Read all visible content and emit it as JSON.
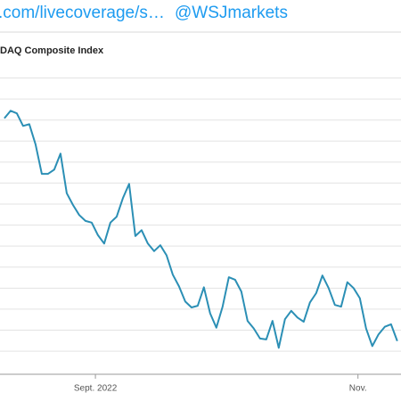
{
  "header": {
    "link": ".com/livecoverage/s…",
    "handle": "@WSJmarkets"
  },
  "chart_data": {
    "type": "line",
    "title": "DAQ Composite Index",
    "color": "#2b8fb5",
    "grid": true,
    "values": [
      13020,
      13110,
      13080,
      12930,
      12950,
      12710,
      12360,
      12360,
      12410,
      12600,
      12130,
      11990,
      11870,
      11800,
      11780,
      11630,
      11530,
      11780,
      11850,
      12070,
      12240,
      11620,
      11690,
      11530,
      11440,
      11510,
      11390,
      11160,
      11020,
      10840,
      10770,
      10790,
      11010,
      10700,
      10530,
      10780,
      11130,
      11100,
      10960,
      10610,
      10520,
      10400,
      10390,
      10610,
      10290,
      10630,
      10730,
      10650,
      10600,
      10830,
      10940,
      11150,
      11000,
      10800,
      10780,
      11070,
      11000,
      10880,
      10520,
      10310,
      10450,
      10540,
      10570,
      10370
    ],
    "xlim": [
      -0.7,
      63.6
    ],
    "xticks": [
      {
        "value": 14.6,
        "label": "Sept. 2022"
      },
      {
        "value": 56.7,
        "label": "Nov."
      }
    ],
    "ylim": [
      9975,
      13580
    ],
    "yticks": [
      10250,
      10500,
      10750,
      11000,
      11250,
      11500,
      11750,
      12000,
      12250,
      12500,
      12750,
      13000,
      13250,
      13500
    ]
  }
}
